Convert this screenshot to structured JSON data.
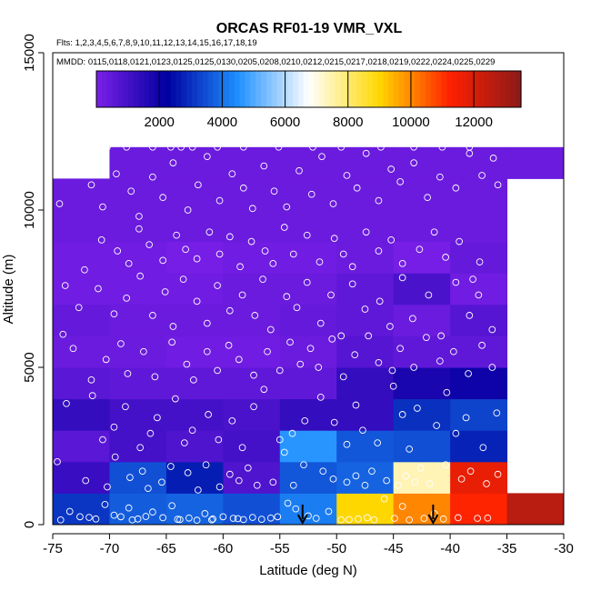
{
  "chart_data": {
    "type": "heatmap",
    "title": "ORCAS RF01-19 VMR_VXL",
    "flights_text": "Flts: 1,2,3,4,5,6,7,8,9,10,11,12,13,14,15,16,17,18,19",
    "dates_text": "MMDD: 0115,0118,0121,0123,0125,0125,0130,0205,0208,0210,0212,0215,0217,0218,0219,0222,0224,0225,0229",
    "xlabel": "Latitude (deg N)",
    "ylabel": "Altitude (m)",
    "xlim": [
      -75,
      -30
    ],
    "ylim": [
      0,
      15000
    ],
    "x_ticks": [
      -75,
      -70,
      -65,
      -60,
      -55,
      -50,
      -45,
      -40,
      -35,
      -30
    ],
    "x_tick_labels": [
      "-75",
      "-70",
      "-65",
      "-60",
      "-55",
      "-50",
      "-45",
      "-40",
      "-35",
      "-30"
    ],
    "y_ticks": [
      0,
      5000,
      10000,
      15000
    ],
    "y_tick_labels": [
      "0",
      "5000",
      "10000",
      "15000"
    ],
    "colorbar": {
      "range": [
        0,
        13500
      ],
      "ticks": [
        2000,
        4000,
        6000,
        8000,
        10000,
        12000
      ],
      "tick_labels": [
        "2000",
        "4000",
        "6000",
        "8000",
        "10000",
        "12000"
      ],
      "colors": [
        "#7b1fe8",
        "#0000a0",
        "#1e90ff",
        "#ffffff",
        "#ffd700",
        "#ff2000",
        "#8b1a1a"
      ]
    },
    "lat_bins": [
      -75,
      -70,
      -65,
      -60,
      -55,
      -50,
      -45,
      -40,
      -35
    ],
    "alt_bins": [
      0,
      1000,
      2000,
      3000,
      4000,
      5000,
      6000,
      7000,
      8000,
      9000,
      10000,
      11000,
      12000
    ],
    "cells": [
      [
        3100,
        3700,
        3800,
        3500,
        4200,
        9000,
        10000,
        11200,
        12600
      ],
      [
        1200,
        3500,
        2700,
        800,
        3600,
        3800,
        7400,
        11700,
        null
      ],
      [
        600,
        1000,
        800,
        1000,
        4600,
        3600,
        3500,
        2800,
        null
      ],
      [
        1300,
        1000,
        1000,
        900,
        1300,
        1300,
        3000,
        3300,
        null
      ],
      [
        600,
        500,
        500,
        500,
        500,
        1300,
        1800,
        2000,
        null
      ],
      [
        300,
        300,
        200,
        200,
        300,
        700,
        500,
        500,
        null
      ],
      [
        400,
        300,
        300,
        300,
        400,
        500,
        300,
        700,
        null
      ],
      [
        200,
        200,
        200,
        300,
        300,
        500,
        900,
        200,
        null
      ],
      [
        200,
        200,
        100,
        200,
        200,
        300,
        100,
        400,
        null
      ],
      [
        300,
        300,
        300,
        300,
        300,
        300,
        300,
        300,
        null
      ],
      [
        300,
        300,
        300,
        300,
        300,
        300,
        300,
        300,
        null
      ],
      [
        null,
        300,
        300,
        300,
        300,
        300,
        300,
        300,
        300
      ]
    ],
    "arrows_lat": [
      -53,
      -41.5
    ],
    "points": [
      [
        -74.3,
        150
      ],
      [
        -73.5,
        420
      ],
      [
        -71.8,
        230
      ],
      [
        -71.2,
        180
      ],
      [
        -70.4,
        640
      ],
      [
        -69.6,
        300
      ],
      [
        -69.0,
        250
      ],
      [
        -68.3,
        530
      ],
      [
        -67.5,
        180
      ],
      [
        -66.8,
        260
      ],
      [
        -66.2,
        400
      ],
      [
        -65.3,
        220
      ],
      [
        -64.5,
        600
      ],
      [
        -63.8,
        160
      ],
      [
        -63.0,
        210
      ],
      [
        -62.3,
        140
      ],
      [
        -61.6,
        350
      ],
      [
        -60.9,
        180
      ],
      [
        -60.0,
        250
      ],
      [
        -59.1,
        200
      ],
      [
        -58.2,
        160
      ],
      [
        -57.4,
        230
      ],
      [
        -56.6,
        170
      ],
      [
        -55.2,
        250
      ],
      [
        -54.3,
        680
      ],
      [
        -53.6,
        500
      ],
      [
        -52.5,
        280
      ],
      [
        -51.8,
        200
      ],
      [
        -50.7,
        420
      ],
      [
        -49.6,
        150
      ],
      [
        -48.9,
        160
      ],
      [
        -48.1,
        180
      ],
      [
        -47.3,
        220
      ],
      [
        -46.7,
        150
      ],
      [
        -45.8,
        820
      ],
      [
        -44.9,
        200
      ],
      [
        -44.2,
        580
      ],
      [
        -43.6,
        150
      ],
      [
        -42.3,
        200
      ],
      [
        -41.4,
        350
      ],
      [
        -40.6,
        180
      ],
      [
        -39.3,
        220
      ],
      [
        -37.6,
        200
      ],
      [
        -36.7,
        210
      ],
      [
        -64.0,
        170
      ],
      [
        -58.7,
        190
      ],
      [
        -55.8,
        210
      ],
      [
        -72.6,
        250
      ],
      [
        -68.0,
        150
      ],
      [
        -61.0,
        150
      ],
      [
        -74.6,
        2000
      ],
      [
        -72.1,
        1400
      ],
      [
        -70.2,
        1200
      ],
      [
        -69.5,
        2150
      ],
      [
        -68.2,
        1500
      ],
      [
        -67.1,
        1700
      ],
      [
        -66.6,
        1150
      ],
      [
        -65.4,
        1350
      ],
      [
        -64.6,
        1850
      ],
      [
        -63.1,
        1650
      ],
      [
        -62.2,
        1100
      ],
      [
        -61.5,
        1900
      ],
      [
        -60.3,
        1200
      ],
      [
        -59.4,
        1600
      ],
      [
        -58.6,
        1400
      ],
      [
        -57.8,
        1800
      ],
      [
        -57.0,
        1250
      ],
      [
        -55.6,
        1350
      ],
      [
        -54.6,
        2300
      ],
      [
        -53.8,
        1250
      ],
      [
        -52.9,
        1900
      ],
      [
        -51.2,
        1700
      ],
      [
        -50.3,
        1450
      ],
      [
        -49.1,
        1350
      ],
      [
        -48.3,
        1550
      ],
      [
        -47.5,
        1250
      ],
      [
        -46.9,
        1700
      ],
      [
        -45.6,
        1400
      ],
      [
        -44.6,
        1250
      ],
      [
        -43.9,
        1550
      ],
      [
        -43.1,
        1350
      ],
      [
        -42.6,
        1800
      ],
      [
        -41.8,
        1300
      ],
      [
        -40.4,
        1900
      ],
      [
        -39.0,
        1450
      ],
      [
        -38.2,
        1700
      ],
      [
        -36.8,
        1300
      ],
      [
        -35.8,
        1600
      ],
      [
        -73.8,
        3850
      ],
      [
        -71.5,
        4100
      ],
      [
        -70.6,
        2700
      ],
      [
        -69.6,
        3100
      ],
      [
        -68.6,
        3750
      ],
      [
        -67.3,
        2450
      ],
      [
        -66.4,
        2900
      ],
      [
        -65.8,
        3400
      ],
      [
        -64.2,
        4000
      ],
      [
        -63.4,
        2600
      ],
      [
        -62.7,
        3000
      ],
      [
        -61.3,
        3500
      ],
      [
        -60.4,
        2700
      ],
      [
        -59.2,
        3300
      ],
      [
        -58.3,
        2450
      ],
      [
        -57.3,
        3750
      ],
      [
        -56.4,
        4300
      ],
      [
        -55.0,
        2700
      ],
      [
        -53.9,
        2900
      ],
      [
        -52.8,
        3300
      ],
      [
        -51.4,
        4050
      ],
      [
        -50.2,
        3250
      ],
      [
        -49.1,
        2550
      ],
      [
        -48.3,
        3800
      ],
      [
        -47.7,
        3000
      ],
      [
        -46.4,
        2600
      ],
      [
        -45.0,
        4400
      ],
      [
        -44.2,
        3500
      ],
      [
        -43.6,
        2400
      ],
      [
        -42.9,
        3700
      ],
      [
        -41.2,
        3150
      ],
      [
        -40.3,
        4200
      ],
      [
        -39.5,
        2900
      ],
      [
        -38.6,
        3400
      ],
      [
        -37.1,
        2450
      ],
      [
        -35.9,
        3550
      ],
      [
        -73.2,
        5600
      ],
      [
        -71.6,
        4600
      ],
      [
        -70.3,
        5250
      ],
      [
        -69.0,
        5750
      ],
      [
        -68.4,
        4800
      ],
      [
        -67.0,
        5500
      ],
      [
        -66.0,
        4700
      ],
      [
        -64.5,
        5800
      ],
      [
        -63.2,
        5100
      ],
      [
        -62.6,
        4600
      ],
      [
        -61.4,
        5500
      ],
      [
        -60.5,
        4900
      ],
      [
        -59.5,
        5700
      ],
      [
        -58.6,
        5250
      ],
      [
        -57.3,
        4750
      ],
      [
        -56.1,
        5500
      ],
      [
        -55.0,
        4900
      ],
      [
        -54.1,
        5800
      ],
      [
        -53.2,
        5100
      ],
      [
        -52.3,
        5600
      ],
      [
        -51.6,
        5000
      ],
      [
        -50.4,
        5900
      ],
      [
        -49.4,
        4700
      ],
      [
        -48.4,
        5400
      ],
      [
        -47.2,
        6000
      ],
      [
        -46.3,
        5150
      ],
      [
        -45.1,
        4900
      ],
      [
        -44.4,
        5600
      ],
      [
        -43.2,
        5000
      ],
      [
        -42.1,
        5950
      ],
      [
        -40.9,
        5200
      ],
      [
        -39.7,
        5500
      ],
      [
        -38.4,
        4800
      ],
      [
        -37.2,
        5700
      ],
      [
        -36.3,
        5000
      ],
      [
        -74.1,
        6050
      ],
      [
        -72.7,
        6900
      ],
      [
        -71.0,
        7500
      ],
      [
        -69.6,
        6700
      ],
      [
        -68.5,
        7200
      ],
      [
        -67.3,
        7900
      ],
      [
        -66.2,
        6650
      ],
      [
        -65.1,
        7400
      ],
      [
        -64.4,
        6300
      ],
      [
        -63.5,
        7800
      ],
      [
        -62.3,
        7100
      ],
      [
        -61.4,
        6400
      ],
      [
        -60.5,
        7600
      ],
      [
        -59.4,
        6800
      ],
      [
        -58.3,
        7300
      ],
      [
        -57.2,
        6650
      ],
      [
        -56.5,
        7800
      ],
      [
        -55.8,
        6200
      ],
      [
        -54.4,
        7250
      ],
      [
        -53.5,
        6900
      ],
      [
        -52.6,
        7700
      ],
      [
        -51.4,
        6400
      ],
      [
        -50.5,
        7300
      ],
      [
        -49.6,
        6000
      ],
      [
        -48.6,
        7650
      ],
      [
        -47.5,
        6850
      ],
      [
        -46.2,
        7100
      ],
      [
        -45.3,
        6300
      ],
      [
        -44.2,
        7850
      ],
      [
        -43.3,
        6550
      ],
      [
        -41.9,
        7300
      ],
      [
        -40.8,
        6000
      ],
      [
        -39.5,
        7700
      ],
      [
        -38.3,
        6650
      ],
      [
        -37.5,
        7300
      ],
      [
        -36.3,
        6200
      ],
      [
        -73.9,
        7600
      ],
      [
        -72.2,
        8100
      ],
      [
        -70.7,
        9050
      ],
      [
        -69.3,
        8700
      ],
      [
        -68.3,
        8300
      ],
      [
        -67.4,
        9400
      ],
      [
        -66.5,
        8900
      ],
      [
        -65.3,
        8400
      ],
      [
        -64.1,
        9200
      ],
      [
        -63.3,
        8750
      ],
      [
        -62.3,
        8450
      ],
      [
        -61.2,
        9300
      ],
      [
        -60.3,
        8600
      ],
      [
        -59.4,
        9150
      ],
      [
        -58.5,
        8200
      ],
      [
        -57.5,
        9000
      ],
      [
        -56.3,
        8700
      ],
      [
        -55.6,
        8300
      ],
      [
        -54.6,
        9450
      ],
      [
        -53.8,
        8600
      ],
      [
        -52.6,
        9200
      ],
      [
        -51.5,
        8350
      ],
      [
        -50.2,
        9100
      ],
      [
        -49.4,
        8600
      ],
      [
        -48.6,
        8200
      ],
      [
        -47.4,
        9300
      ],
      [
        -46.3,
        8700
      ],
      [
        -45.2,
        9050
      ],
      [
        -44.2,
        8300
      ],
      [
        -42.7,
        8750
      ],
      [
        -41.4,
        9300
      ],
      [
        -40.4,
        8500
      ],
      [
        -39.2,
        9000
      ],
      [
        -38.0,
        7800
      ],
      [
        -37.4,
        8350
      ],
      [
        -74.4,
        10200
      ],
      [
        -71.6,
        10800
      ],
      [
        -70.6,
        10100
      ],
      [
        -69.4,
        11150
      ],
      [
        -68.1,
        10600
      ],
      [
        -67.4,
        9800
      ],
      [
        -66.2,
        11050
      ],
      [
        -65.3,
        10400
      ],
      [
        -64.4,
        11500
      ],
      [
        -63.1,
        10000
      ],
      [
        -62.2,
        10800
      ],
      [
        -61.4,
        11700
      ],
      [
        -60.3,
        10300
      ],
      [
        -59.2,
        11150
      ],
      [
        -58.2,
        10700
      ],
      [
        -57.4,
        10050
      ],
      [
        -56.4,
        11400
      ],
      [
        -55.5,
        10600
      ],
      [
        -54.4,
        10100
      ],
      [
        -53.3,
        11250
      ],
      [
        -52.2,
        10500
      ],
      [
        -51.3,
        11700
      ],
      [
        -50.3,
        10200
      ],
      [
        -49.1,
        11100
      ],
      [
        -48.2,
        10700
      ],
      [
        -47.4,
        11800
      ],
      [
        -46.3,
        10300
      ],
      [
        -45.2,
        11300
      ],
      [
        -44.4,
        10900
      ],
      [
        -43.2,
        11500
      ],
      [
        -42.0,
        10400
      ],
      [
        -40.9,
        11050
      ],
      [
        -39.5,
        10700
      ],
      [
        -38.3,
        11800
      ],
      [
        -37.2,
        11100
      ],
      [
        -35.8,
        10800
      ],
      [
        -70.2,
        12000
      ],
      [
        -68.5,
        12000
      ],
      [
        -66.2,
        12000
      ],
      [
        -64.6,
        12000
      ],
      [
        -63.7,
        12000
      ],
      [
        -62.7,
        12000
      ],
      [
        -60.5,
        12000
      ],
      [
        -58.2,
        12000
      ],
      [
        -55.1,
        12000
      ],
      [
        -52.1,
        12000
      ],
      [
        -49.6,
        12000
      ],
      [
        -46.1,
        12000
      ],
      [
        -43.2,
        12000
      ],
      [
        -40.7,
        12000
      ],
      [
        -38.3,
        12000
      ],
      [
        -36.2,
        11650
      ]
    ]
  }
}
